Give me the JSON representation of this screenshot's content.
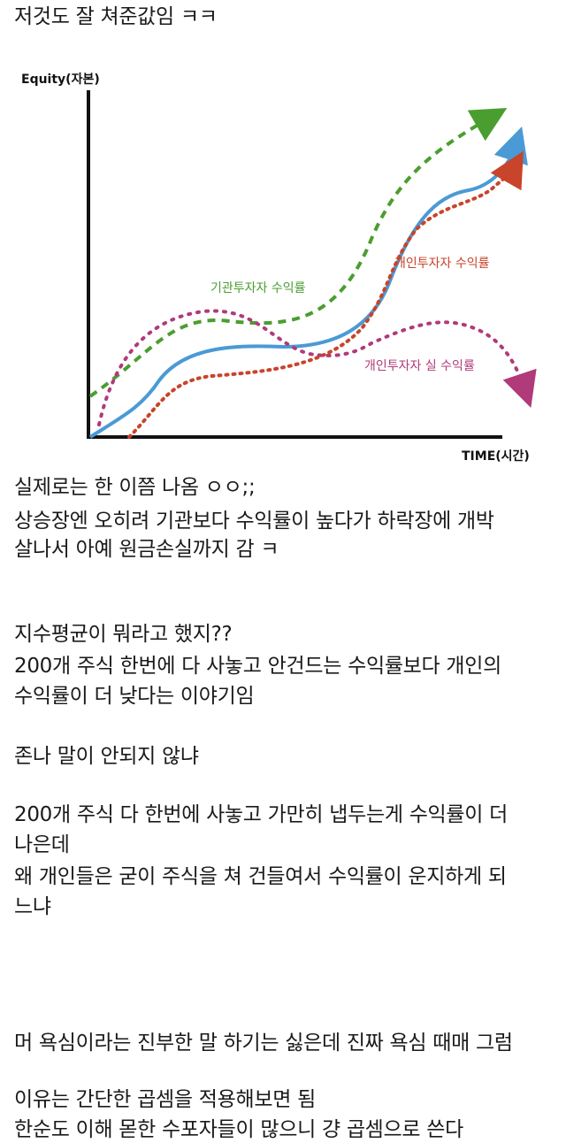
{
  "post": {
    "lines": [
      "저것도 잘 쳐준값임 ㅋㅋ",
      "실제로는 한 이쯤 나옴 ㅇㅇ;;",
      "상승장엔 오히려 기관보다 수익률이 높다가 하락장에 개박",
      "살나서 아예 원금손실까지 감 ㅋ",
      "지수평균이 뭐라고 했지??",
      "200개 주식 한번에 다 사놓고 안건드는 수익률보다 개인의",
      "수익률이 더 낮다는 이야기임",
      "존나 말이 안되지 않냐",
      "200개 주식 다 한번에 사놓고 가만히 냅두는게 수익률이 더",
      "나은데",
      "왜 개인들은 굳이 주식을 쳐 건들여서 수익률이 운지하게 되",
      "느냐",
      "머 욕심이라는 진부한 말 하기는 싫은데 진짜 욕심 때매 그럼",
      "이유는 간단한 곱셈을 적용해보면 됨",
      "한순도 이해 몯한 수포자들이 많으니 걍 곱셈으로 쓴다"
    ]
  },
  "chart_data": {
    "type": "line",
    "ylabel": "Equity(자본)",
    "xlabel": "TIME(시간)",
    "series": [
      {
        "name": "기관투자자 수익률",
        "color": "#4a9e2f",
        "style": "dashed",
        "values": [
          15,
          28,
          38,
          42,
          48,
          58,
          78,
          85,
          95,
          100
        ]
      },
      {
        "name": "",
        "color": "#4a9ad6",
        "style": "solid",
        "values": [
          0,
          18,
          28,
          27,
          32,
          50,
          70,
          75,
          83,
          93
        ]
      },
      {
        "name": "개인투자자 수익률",
        "color": "#c8442a",
        "style": "dotted",
        "values": [
          0,
          12,
          20,
          22,
          25,
          38,
          58,
          65,
          75,
          88
        ]
      },
      {
        "name": "개인투자자 실 수익률",
        "color": "#b03a7a",
        "style": "dotted",
        "values": [
          12,
          38,
          40,
          34,
          22,
          22,
          28,
          33,
          30,
          15
        ]
      }
    ],
    "grid": false,
    "legend": "inline labels"
  }
}
